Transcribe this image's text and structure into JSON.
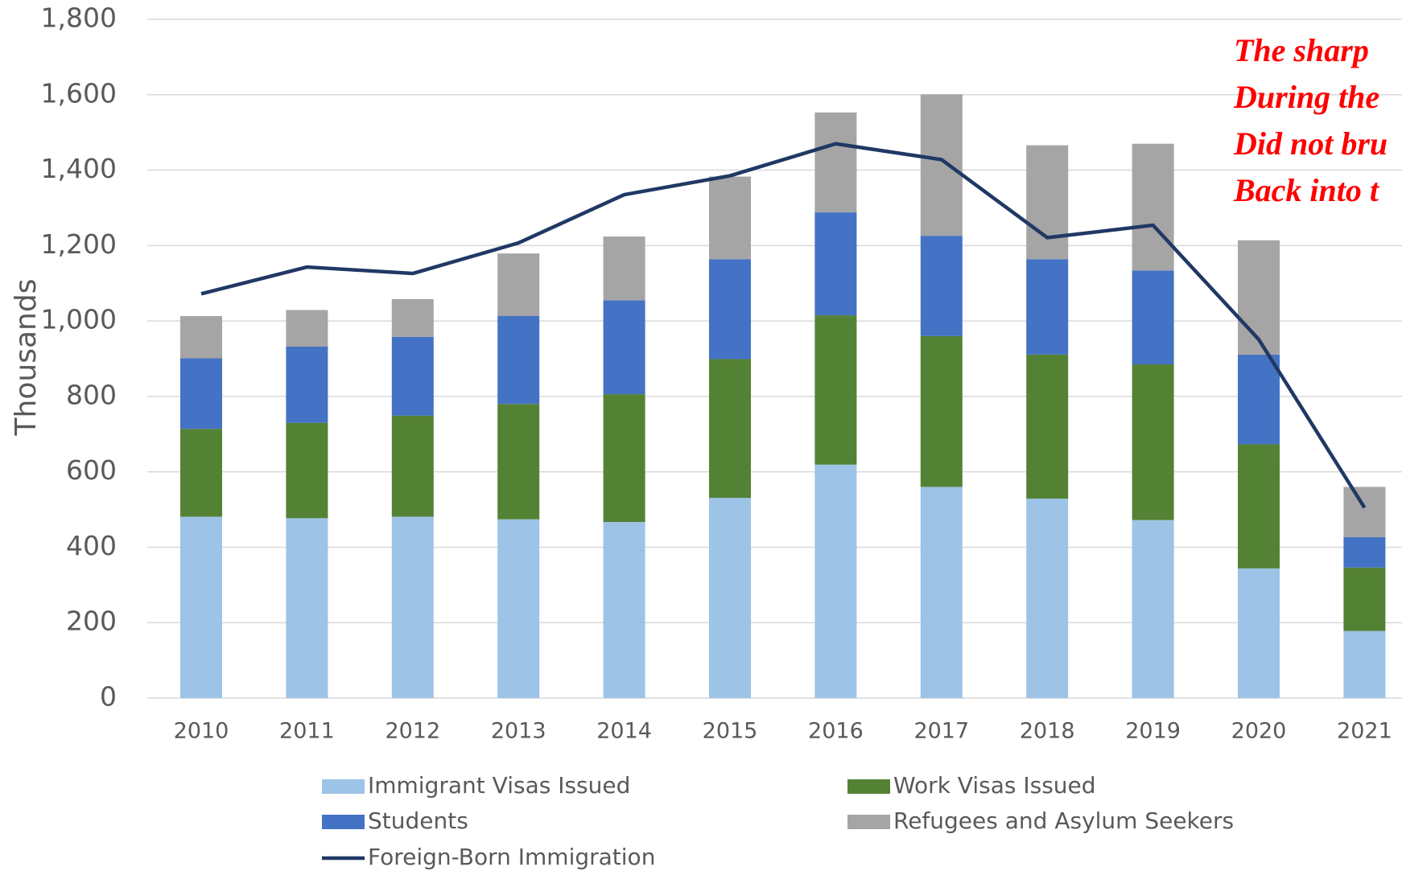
{
  "chart_data": {
    "type": "bar",
    "stacked": true,
    "y_label": "Thousands",
    "annotation": [
      "The sharp",
      "During the",
      "Did not bru",
      "Back into t"
    ],
    "categories": [
      "2010",
      "2011",
      "2012",
      "2013",
      "2014",
      "2015",
      "2016",
      "2017",
      "2018",
      "2019",
      "2020",
      "2021"
    ],
    "series": [
      {
        "name": "Immigrant Visas Issued",
        "color": "#9dc3e6",
        "values": [
          481,
          477,
          481,
          474,
          467,
          531,
          619,
          560,
          529,
          472,
          344,
          178
        ]
      },
      {
        "name": "Work Visas Issued",
        "color": "#548235",
        "values": [
          233,
          253,
          268,
          306,
          339,
          368,
          396,
          400,
          382,
          413,
          329,
          168
        ]
      },
      {
        "name": "Students",
        "color": "#4472c4",
        "values": [
          187,
          202,
          209,
          233,
          249,
          265,
          273,
          266,
          253,
          249,
          238,
          81
        ]
      },
      {
        "name": "Refugees and Asylum Seekers",
        "color": "#a5a5a5",
        "values": [
          112,
          97,
          100,
          166,
          169,
          219,
          265,
          375,
          302,
          336,
          303,
          133
        ]
      },
      {
        "name": "Foreign-Born Immigration",
        "color": "#203864",
        "type": "line",
        "values": [
          1072,
          1143,
          1126,
          1207,
          1335,
          1385,
          1470,
          1428,
          1221,
          1254,
          951,
          505
        ]
      }
    ],
    "ylim": [
      0,
      1800
    ],
    "yticks": [
      0,
      200,
      400,
      600,
      800,
      {
        "value": 1000,
        "label": "1,000"
      },
      {
        "value": 1200,
        "label": "1,200"
      },
      {
        "value": 1400,
        "label": "1,400"
      },
      {
        "value": 1600,
        "label": "1,600"
      },
      {
        "value": 1800,
        "label": "1,800"
      }
    ],
    "grid": true
  }
}
